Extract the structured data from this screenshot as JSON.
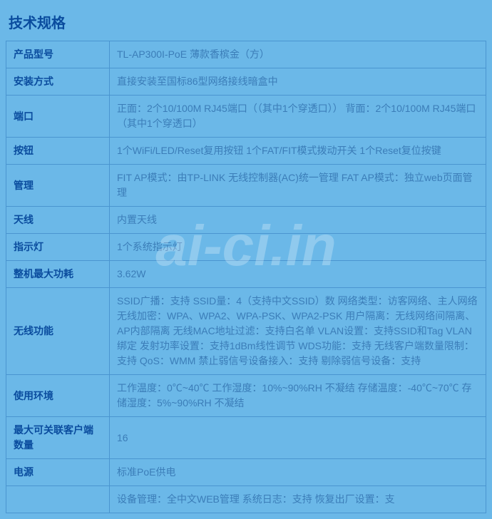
{
  "title": "技术规格",
  "watermark": "ai-ci.in",
  "specs": [
    {
      "label": "产品型号",
      "value": "TL-AP300I-PoE 薄款香槟金（方）"
    },
    {
      "label": "安装方式",
      "value": "直接安装至国标86型网络接线暗盒中"
    },
    {
      "label": "端口",
      "value": "正面：2个10/100M RJ45端口（（其中1个穿透口）） 背面：2个10/100M RJ45端口（其中1个穿透口）"
    },
    {
      "label": "按钮",
      "value": "1个WiFi/LED/Reset复用按钮 1个FAT/FIT模式拨动开关 1个Reset复位按键"
    },
    {
      "label": "管理",
      "value": "FIT AP模式：由TP-LINK 无线控制器(AC)统一管理 FAT AP模式：独立web页面管理"
    },
    {
      "label": "天线",
      "value": "内置天线"
    },
    {
      "label": "指示灯",
      "value": "1个系统指示灯"
    },
    {
      "label": "整机最大功耗",
      "value": "3.62W"
    },
    {
      "label": "无线功能",
      "value": "SSID广播：支持 SSID量：4（支持中文SSID）数 网络类型：访客网络、主人网络 无线加密：WPA、WPA2、WPA-PSK、WPA2-PSK 用户隔离：无线网络间隔离、AP内部隔离 无线MAC地址过滤：支持白名单 VLAN设置：支持SSID和Tag VLAN绑定 发射功率设置：支持1dBm线性调节 WDS功能：支持 无线客户端数量限制：支持 QoS：WMM 禁止弱信号设备接入：支持 剔除弱信号设备：支持"
    },
    {
      "label": "使用环境",
      "value": "工作温度：0℃~40℃ 工作湿度：10%~90%RH 不凝结 存储温度：-40℃~70℃ 存储湿度：5%~90%RH 不凝结"
    },
    {
      "label": "最大可关联客户端数量",
      "value": "16"
    },
    {
      "label": "电源",
      "value": "标准PoE供电"
    },
    {
      "label": "",
      "value": "设备管理：全中文WEB管理 系统日志：支持 恢复出厂设置：支"
    }
  ],
  "colors": {
    "background": "#6bb8e8",
    "border": "#4a95d0",
    "title_color": "#0a4c9e",
    "label_color": "#0a4c9e",
    "value_color": "#3b7db8"
  }
}
